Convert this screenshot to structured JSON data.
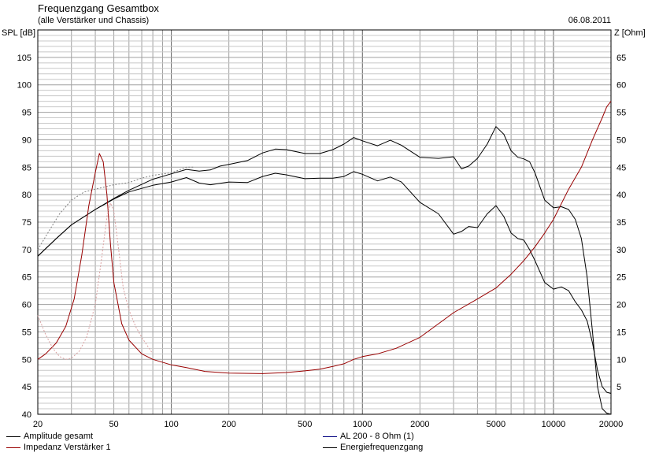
{
  "header": {
    "title": "Frequenzgang Gesamtbox",
    "subtitle": "(alle Verstärker und Chassis)",
    "date": "06.08.2011"
  },
  "colors": {
    "grid": "#a0a0a0",
    "grid_minor": "#c8c8c8",
    "amplitude": "#000000",
    "impedance": "#990000",
    "impedance_ref": "#d9a0a0",
    "spl_ref": "#808080",
    "al200": "#000080"
  },
  "chart_data": {
    "type": "line",
    "xscale": "log",
    "xlim": [
      20,
      20000
    ],
    "ylim_left": [
      40,
      110
    ],
    "ylim_right": [
      0,
      70
    ],
    "ylabel_left": "SPL [dB]",
    "ylabel_right": "Z [Ohm]",
    "x_ticks": [
      20,
      50,
      100,
      200,
      500,
      1000,
      2000,
      5000,
      10000,
      20000
    ],
    "x_tick_labels": [
      "20",
      "50",
      "100",
      "200",
      "500",
      "1000",
      "2000",
      "5000",
      "10000",
      "20000"
    ],
    "y_ticks_left": [
      40,
      45,
      50,
      55,
      60,
      65,
      70,
      75,
      80,
      85,
      90,
      95,
      100,
      105
    ],
    "y_ticks_right": [
      5,
      10,
      15,
      20,
      25,
      30,
      35,
      40,
      45,
      50,
      55,
      60,
      65
    ],
    "grid": true,
    "legend_position": "bottom",
    "legend": [
      {
        "label": "Amplitude gesamt",
        "color": "#000000"
      },
      {
        "label": "Impedanz Verstärker 1",
        "color": "#990000"
      },
      {
        "label": "AL 200 - 8 Ohm (1)",
        "color": "#000080"
      },
      {
        "label": "Energiefrequenzgang",
        "color": "#000000"
      }
    ],
    "series": [
      {
        "axis": "left",
        "color": "#000000",
        "dash": false,
        "x": [
          20,
          25,
          30,
          40,
          50,
          60,
          80,
          100,
          120,
          140,
          160,
          200,
          250,
          300,
          350,
          400,
          500,
          600,
          700,
          800,
          900,
          1000,
          1200,
          1400,
          1600,
          2000,
          2500,
          3000,
          3300,
          3600,
          4000,
          4500,
          5000,
          5500,
          6000,
          6500,
          7000,
          7500,
          8000,
          9000,
          10000,
          11000,
          12000,
          13000,
          14000,
          15000,
          16000,
          17000,
          18000,
          19000,
          20000
        ],
        "y": [
          68.8,
          72,
          74.5,
          77.3,
          79.2,
          80.5,
          81.7,
          82.3,
          83.1,
          82.1,
          81.8,
          82.3,
          82.2,
          83.3,
          83.9,
          83.6,
          82.9,
          83.0,
          83.0,
          83.3,
          84.2,
          83.7,
          82.5,
          83.2,
          82.3,
          78.6,
          76.5,
          72.8,
          73.3,
          74.2,
          74.0,
          76.5,
          78.0,
          76.0,
          73.0,
          72.0,
          71.7,
          70.0,
          68.0,
          64.0,
          62.8,
          63.2,
          62.5,
          60.5,
          59.0,
          57.0,
          53.0,
          48.0,
          45.0,
          44.0,
          43.8
        ]
      },
      {
        "axis": "left",
        "color": "#000000",
        "dash": false,
        "x": [
          20,
          25,
          30,
          40,
          50,
          60,
          80,
          100,
          120,
          140,
          160,
          180,
          200,
          250,
          300,
          350,
          400,
          500,
          600,
          700,
          800,
          900,
          1000,
          1200,
          1400,
          1600,
          2000,
          2500,
          3000,
          3300,
          3600,
          4000,
          4500,
          5000,
          5500,
          6000,
          6500,
          7000,
          7500,
          8000,
          9000,
          10000,
          11000,
          12000,
          13000,
          14000,
          15000,
          16000,
          17000,
          18000,
          19000,
          20000
        ],
        "y": [
          68.8,
          72.0,
          74.5,
          77.3,
          79.3,
          80.8,
          82.8,
          83.8,
          84.6,
          84.3,
          84.5,
          85.2,
          85.5,
          86.2,
          87.6,
          88.3,
          88.2,
          87.5,
          87.5,
          88.2,
          89.2,
          90.4,
          89.8,
          88.9,
          89.9,
          89.0,
          86.8,
          86.6,
          86.9,
          84.7,
          85.2,
          86.6,
          89.2,
          92.4,
          91.0,
          88.0,
          86.8,
          86.5,
          86.0,
          84.0,
          79.0,
          77.6,
          77.8,
          77.3,
          75.5,
          72.0,
          65.0,
          55.0,
          45.0,
          41.0,
          40.2,
          40.0
        ]
      },
      {
        "axis": "left",
        "color": "#808080",
        "dash": true,
        "x": [
          20,
          23,
          26,
          30,
          35,
          40,
          50,
          60,
          70,
          80,
          100,
          110,
          120,
          130
        ],
        "y": [
          70.0,
          73.5,
          76.5,
          79.0,
          80.5,
          81.0,
          81.8,
          82.2,
          83.0,
          83.5,
          84.0,
          84.5,
          85.0,
          85.0
        ]
      },
      {
        "axis": "right",
        "color": "#990000",
        "dash": false,
        "x": [
          20,
          22,
          25,
          28,
          31,
          34,
          37,
          40,
          42,
          44,
          46,
          48,
          50,
          55,
          60,
          70,
          80,
          100,
          120,
          150,
          200,
          300,
          400,
          500,
          600,
          700,
          800,
          900,
          1000,
          1200,
          1500,
          2000,
          3000,
          4000,
          5000,
          6000,
          7000,
          8000,
          9000,
          10000,
          12000,
          14000,
          16000,
          18000,
          19000,
          20000
        ],
        "y": [
          10.0,
          11.0,
          13.0,
          16.0,
          21.0,
          29.0,
          38.0,
          44.0,
          47.5,
          46.0,
          40.0,
          31.0,
          24.0,
          16.5,
          13.5,
          11.0,
          10.0,
          9.0,
          8.5,
          7.8,
          7.5,
          7.4,
          7.6,
          7.9,
          8.2,
          8.7,
          9.2,
          10.0,
          10.5,
          11.0,
          12.0,
          14.0,
          18.5,
          21.0,
          23.0,
          25.5,
          28.0,
          30.5,
          33.0,
          35.5,
          41.0,
          45.0,
          50.0,
          54.0,
          56.0,
          57.0
        ]
      },
      {
        "axis": "right",
        "color": "#d9a0a0",
        "dash": true,
        "x": [
          20,
          22,
          24,
          26,
          28,
          30,
          33,
          36,
          40,
          43,
          46,
          48,
          50,
          53,
          56,
          60,
          65,
          70,
          80
        ],
        "y": [
          18.0,
          14.5,
          12.0,
          10.5,
          10.0,
          10.2,
          11.5,
          14.0,
          20.0,
          28.0,
          36.0,
          38.5,
          37.0,
          30.0,
          23.0,
          19.0,
          16.0,
          14.0,
          11.0
        ]
      }
    ]
  }
}
